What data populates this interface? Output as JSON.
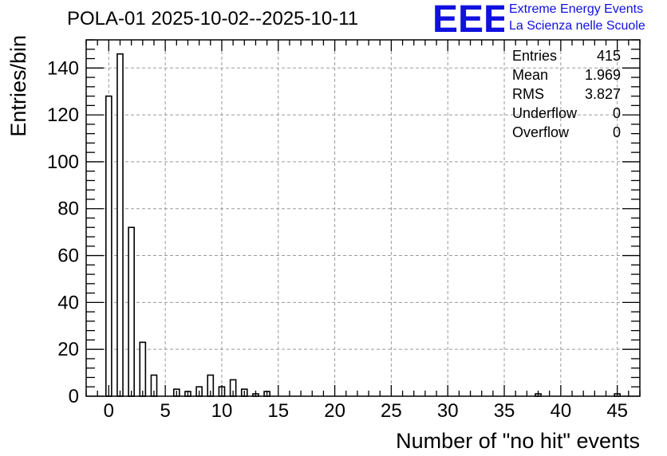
{
  "colors": {
    "logo": "#1010e0",
    "bar_fill": "#ffffff",
    "bar_stroke": "#000000",
    "grid": "#9a9a9a"
  },
  "logo": {
    "mark": "EEE",
    "line1": "Extreme Energy Events",
    "line2": "La Scienza nelle Scuole"
  },
  "stats_box": {
    "rows": [
      {
        "label": "Entries",
        "value": "415"
      },
      {
        "label": "Mean",
        "value": "1.969"
      },
      {
        "label": "RMS",
        "value": "3.827"
      },
      {
        "label": "Underflow",
        "value": "0"
      },
      {
        "label": "Overflow",
        "value": "0"
      }
    ]
  },
  "chart_data": {
    "type": "bar",
    "title": "POLA-01 2025-10-02--2025-10-11",
    "xlabel": "Number of \"no hit\" events",
    "ylabel": "Entries/bin",
    "xlim": [
      -2,
      47
    ],
    "ylim": [
      0,
      152
    ],
    "grid": true,
    "legend": "top-right",
    "x_ticks": [
      0,
      5,
      10,
      15,
      20,
      25,
      30,
      35,
      40,
      45
    ],
    "y_ticks": [
      0,
      20,
      40,
      60,
      80,
      100,
      120,
      140
    ],
    "bin_width": 0.5,
    "bins": [
      {
        "x": 0,
        "value": 128
      },
      {
        "x": 1,
        "value": 146
      },
      {
        "x": 2,
        "value": 72
      },
      {
        "x": 3,
        "value": 23
      },
      {
        "x": 4,
        "value": 9
      },
      {
        "x": 6,
        "value": 3
      },
      {
        "x": 7,
        "value": 2
      },
      {
        "x": 8,
        "value": 4
      },
      {
        "x": 9,
        "value": 9
      },
      {
        "x": 10,
        "value": 4
      },
      {
        "x": 11,
        "value": 7
      },
      {
        "x": 12,
        "value": 3
      },
      {
        "x": 13,
        "value": 1
      },
      {
        "x": 14,
        "value": 2
      },
      {
        "x": 38,
        "value": 1
      },
      {
        "x": 45,
        "value": 1
      }
    ]
  }
}
